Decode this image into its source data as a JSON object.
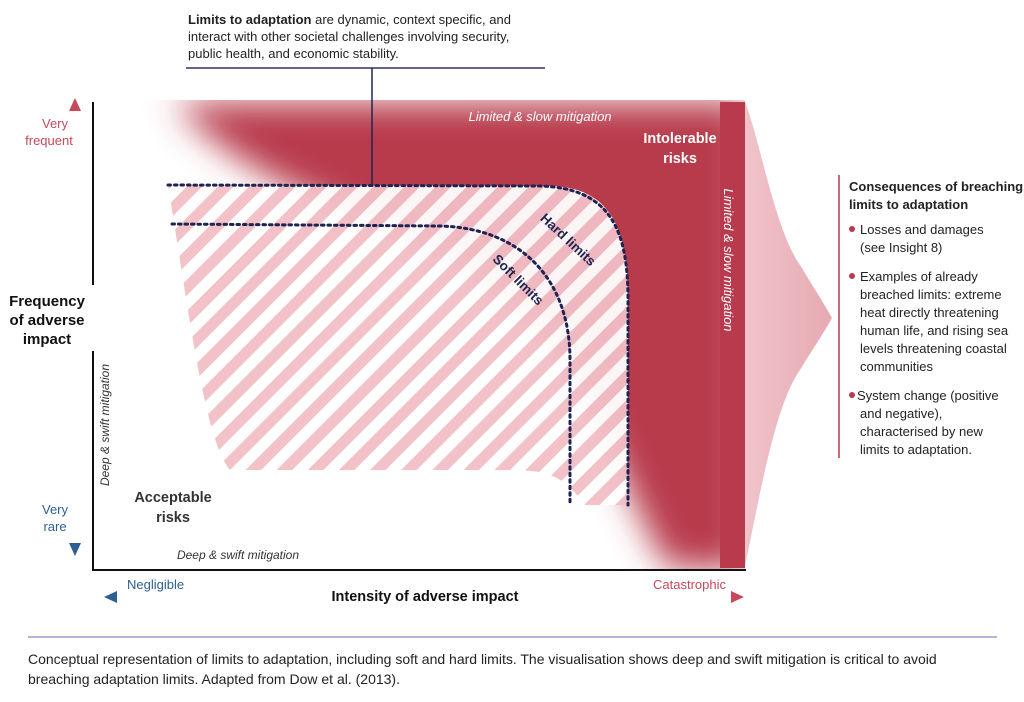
{
  "callout": {
    "bold": "Limits to adaptation",
    "rest_line1": " are dynamic, context specific, and",
    "line2": "interact with other societal challenges involving security,",
    "line3": "public health, and economic stability."
  },
  "y_axis": {
    "title_lines": [
      "Frequency",
      "of adverse",
      "impact"
    ],
    "top_lines": [
      "Very",
      "frequent"
    ],
    "bottom_lines": [
      "Very",
      "rare"
    ]
  },
  "x_axis": {
    "title": "Intensity of adverse impact",
    "left_label": "Negligible",
    "right_label": "Catastrophic"
  },
  "regions": {
    "intolerable_lines": [
      "Intolerable",
      "risks"
    ],
    "acceptable_lines": [
      "Acceptable",
      "risks"
    ]
  },
  "mitigation": {
    "top": "Limited & slow mitigation",
    "right": "Limited & slow mitigation",
    "left": "Deep & swift mitigation",
    "bottom": "Deep & swift mitigation"
  },
  "curves": {
    "hard": "Hard limits",
    "soft": "Soft limits"
  },
  "consequences": {
    "title_lines": [
      "Consequences of breaching",
      "limits to adaptation"
    ],
    "items": [
      {
        "lines": [
          "Losses and damages",
          "(see Insight 8)"
        ]
      },
      {
        "lines": [
          "Examples of already",
          "breached limits: extreme",
          "heat directly threatening",
          "human life, and rising sea",
          "levels threatening coastal",
          "communities"
        ]
      },
      {
        "lines": [
          " System change (positive",
          "and negative),",
          "characterised by new",
          "limits to adaptation."
        ]
      }
    ]
  },
  "caption": "Conceptual representation of limits to adaptation, including soft and hard limits. The visualisation shows deep and swift mitigation is critical to avoid breaching adaptation limits. Adapted from Dow et al. (2013).",
  "colors": {
    "risk_red": "#b83a4c",
    "light_red": "#e9b3bb",
    "axis_blue": "#2d5f95",
    "navy": "#1e2452",
    "divider": "#6b6aa6"
  }
}
